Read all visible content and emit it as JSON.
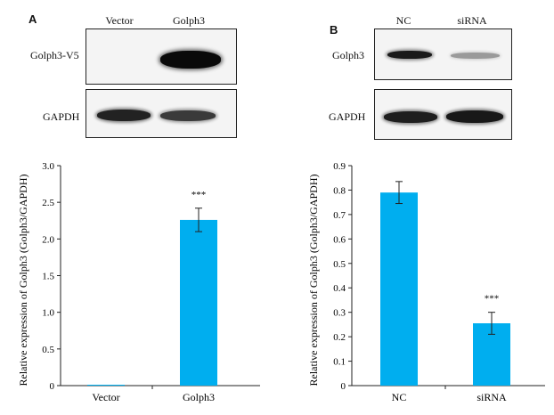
{
  "panels": [
    {
      "letter": "A",
      "lanes": [
        "Vector",
        "Golph3"
      ],
      "rows": [
        "Golph3-V5",
        "GAPDH"
      ]
    },
    {
      "letter": "B",
      "lanes": [
        "NC",
        "siRNA"
      ],
      "rows": [
        "Golph3",
        "GAPDH"
      ]
    }
  ],
  "colors": {
    "bar": "#00AEEF",
    "band": "#111111"
  },
  "chart_data": [
    {
      "type": "bar",
      "categories": [
        "Vector",
        "Golph3"
      ],
      "values": [
        0.01,
        2.26
      ],
      "errors": [
        0.0,
        0.16
      ],
      "significance": [
        "",
        "***"
      ],
      "ylabel": "Relative expression of Golph3 (Golph3/GAPDH)",
      "ylim": [
        0,
        3.0
      ],
      "yticks": [
        0,
        0.5,
        1.0,
        1.5,
        2.0,
        2.5,
        3.0
      ],
      "ytick_labels": [
        "0",
        "0.5",
        "1.0",
        "1.5",
        "2.0",
        "2.5",
        "3.0"
      ]
    },
    {
      "type": "bar",
      "categories": [
        "NC",
        "siRNA"
      ],
      "values": [
        0.79,
        0.255
      ],
      "errors": [
        0.045,
        0.045
      ],
      "significance": [
        "",
        "***"
      ],
      "ylabel": "Relative expression of Golph3 (Golph3/GAPDH)",
      "ylim": [
        0,
        0.9
      ],
      "yticks": [
        0,
        0.1,
        0.2,
        0.3,
        0.4,
        0.5,
        0.6,
        0.7,
        0.8,
        0.9
      ],
      "ytick_labels": [
        "0",
        "0.1",
        "0.2",
        "0.3",
        "0.4",
        "0.5",
        "0.6",
        "0.7",
        "0.8",
        "0.9"
      ]
    }
  ]
}
